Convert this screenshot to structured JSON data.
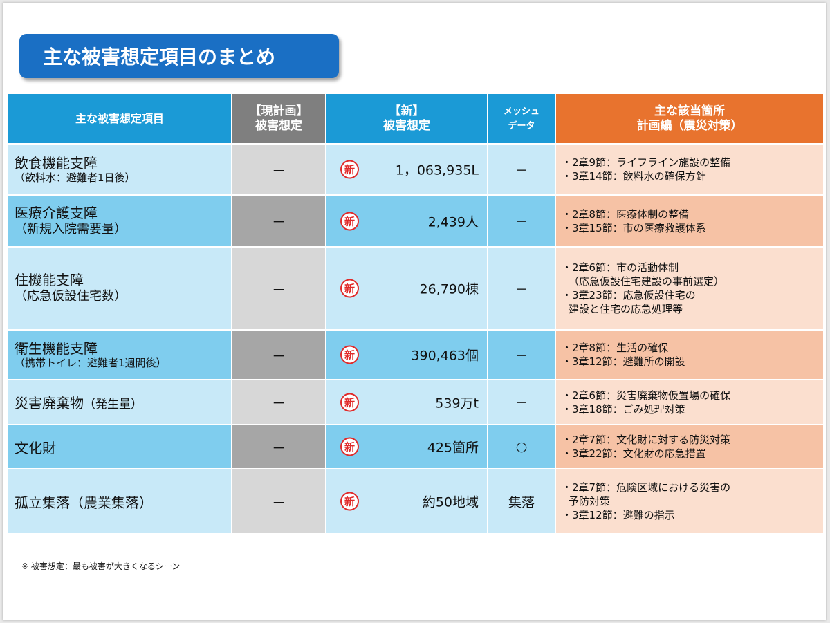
{
  "title": "主な被害想定項目のまとめ",
  "headers": {
    "item": "主な被害想定項目",
    "current": [
      "【現計画】",
      "被害想定"
    ],
    "new": [
      "【新】",
      "被害想定"
    ],
    "mesh": [
      "メッシュ",
      "データ"
    ],
    "refs": [
      "主な該当箇所",
      "計画編（震災対策）"
    ]
  },
  "new_badge": "新",
  "rows": [
    {
      "name": "飲食機能支障",
      "sub": "（飲料水：避難者1日後）",
      "current": "－",
      "value": "1，063,935L",
      "mesh": "－",
      "refs": [
        "・2章9節：ライフライン施設の整備",
        "・3章14節：飲料水の確保方針"
      ]
    },
    {
      "name": "医療介護支障",
      "sub": "（新規入院需要量）",
      "current": "－",
      "value": "2,439人",
      "mesh": "－",
      "refs": [
        "・2章8節：医療体制の整備",
        "・3章15節：市の医療救護体系"
      ]
    },
    {
      "name": "住機能支障",
      "sub": "（応急仮設住宅数）",
      "current": "－",
      "value": "26,790棟",
      "mesh": "－",
      "refs": [
        "・2章6節：市の活動体制",
        "（応急仮設住宅建設の事前選定）",
        "・3章23節：応急仮設住宅の",
        "建設と住宅の応急処理等"
      ]
    },
    {
      "name": "衛生機能支障",
      "sub": "（携帯トイレ：避難者1週間後）",
      "current": "－",
      "value": "390,463個",
      "mesh": "－",
      "refs": [
        "・2章8節：生活の確保",
        "・3章12節：避難所の開設"
      ]
    },
    {
      "name": "災害廃棄物",
      "name_suffix": "（発生量）",
      "current": "－",
      "value": "539万t",
      "mesh": "－",
      "refs": [
        "・2章6節：災害廃棄物仮置場の確保",
        "・3章18節：ごみ処理対策"
      ]
    },
    {
      "name": "文化財",
      "current": "－",
      "value": "425箇所",
      "mesh": "○",
      "refs": [
        "・2章7節：文化財に対する防災対策",
        "・3章22節：文化財の応急措置"
      ]
    },
    {
      "name": "孤立集落（農業集落）",
      "current": "－",
      "value": "約50地域",
      "mesh": "集落",
      "refs": [
        "・2章7節：危険区域における災害の",
        "予防対策",
        "・3章12節：避難の指示"
      ]
    }
  ],
  "footnote": "※ 被害想定：最も被害が大きくなるシーン"
}
